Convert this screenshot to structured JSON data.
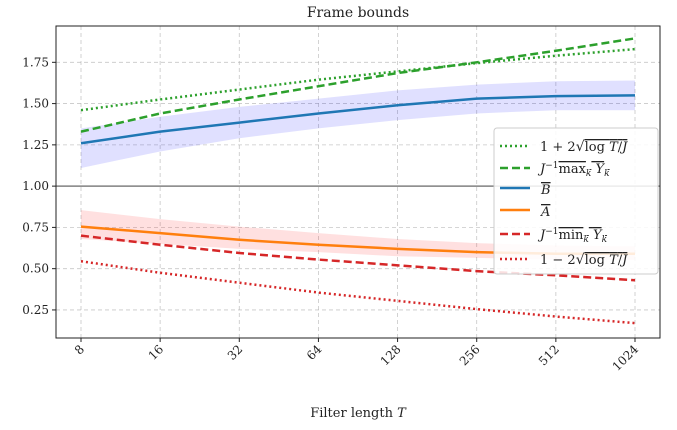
{
  "chart_data": {
    "type": "line",
    "title": "Frame bounds",
    "xlabel": "Filter length T",
    "ylabel": "",
    "xscale": "log2",
    "x": [
      8,
      16,
      32,
      64,
      128,
      256,
      512,
      1024
    ],
    "x_tick_labels": [
      "8",
      "16",
      "32",
      "64",
      "128",
      "256",
      "512",
      "1024"
    ],
    "ylim": [
      0.08,
      1.97
    ],
    "y_ticks": [
      0.25,
      0.5,
      0.75,
      1.0,
      1.25,
      1.5,
      1.75
    ],
    "y_tick_labels": [
      "0.25",
      "0.50",
      "0.75",
      "1.00",
      "1.25",
      "1.50",
      "1.75"
    ],
    "grid": true,
    "legend_position": "right",
    "reference_line": {
      "y": 1.0,
      "color": "#808080"
    },
    "series": [
      {
        "id": "upper-bound",
        "legend": "1 + 2√log T/J",
        "color": "#2ca02c",
        "style": "dotted",
        "values": [
          1.46,
          1.525,
          1.585,
          1.645,
          1.695,
          1.745,
          1.79,
          1.83
        ]
      },
      {
        "id": "max-y",
        "legend": "J⁻¹ max_k Y_k",
        "color": "#2ca02c",
        "style": "dashed",
        "values": [
          1.33,
          1.44,
          1.525,
          1.605,
          1.685,
          1.75,
          1.82,
          1.895
        ]
      },
      {
        "id": "b-bar",
        "legend": "B̄",
        "color": "#1f77b4",
        "style": "solid",
        "values": [
          1.26,
          1.33,
          1.385,
          1.44,
          1.49,
          1.53,
          1.545,
          1.55
        ],
        "band": {
          "color": "#0000ff",
          "opacity": 0.12,
          "lower": [
            1.11,
            1.21,
            1.29,
            1.35,
            1.4,
            1.44,
            1.46,
            1.46
          ],
          "upper": [
            1.35,
            1.42,
            1.48,
            1.53,
            1.58,
            1.615,
            1.635,
            1.64
          ]
        }
      },
      {
        "id": "a-bar",
        "legend": "Ā",
        "color": "#ff7f0e",
        "style": "solid",
        "values": [
          0.755,
          0.715,
          0.675,
          0.645,
          0.62,
          0.6,
          0.59,
          0.59
        ],
        "band": {
          "color": "#ff0000",
          "opacity": 0.12,
          "lower": [
            0.68,
            0.65,
            0.62,
            0.6,
            0.575,
            0.565,
            0.555,
            0.555
          ],
          "upper": [
            0.855,
            0.8,
            0.755,
            0.715,
            0.68,
            0.655,
            0.64,
            0.635
          ]
        }
      },
      {
        "id": "min-y",
        "legend": "J⁻¹ min_k Y_k",
        "color": "#d62728",
        "style": "dashed",
        "values": [
          0.7,
          0.645,
          0.595,
          0.555,
          0.52,
          0.485,
          0.46,
          0.43
        ]
      },
      {
        "id": "lower-bound",
        "legend": "1 − 2√log T/J",
        "color": "#d62728",
        "style": "dotted",
        "values": [
          0.545,
          0.475,
          0.415,
          0.355,
          0.305,
          0.255,
          0.21,
          0.17
        ]
      }
    ]
  }
}
